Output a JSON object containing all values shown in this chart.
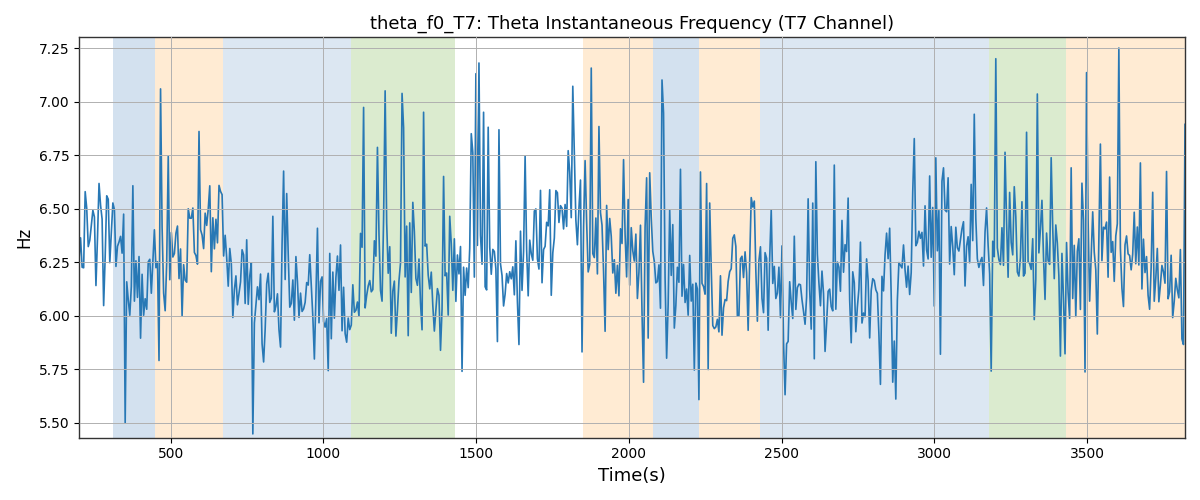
{
  "title": "theta_f0_T7: Theta Instantaneous Frequency (T7 Channel)",
  "xlabel": "Time(s)",
  "ylabel": "Hz",
  "xlim": [
    200,
    3820
  ],
  "ylim": [
    5.43,
    7.3
  ],
  "yticks": [
    5.5,
    5.75,
    6.0,
    6.25,
    6.5,
    6.75,
    7.0,
    7.25
  ],
  "xticks": [
    500,
    1000,
    1500,
    2000,
    2500,
    3000,
    3500
  ],
  "line_color": "#2878b5",
  "line_width": 1.2,
  "background_color": "#ffffff",
  "grid_color": "#b0b0b0",
  "bands": [
    {
      "xmin": 310,
      "xmax": 450,
      "color": "#a8c4e0",
      "alpha": 0.5
    },
    {
      "xmin": 450,
      "xmax": 670,
      "color": "#ffd9a8",
      "alpha": 0.5
    },
    {
      "xmin": 670,
      "xmax": 870,
      "color": "#a8c4e0",
      "alpha": 0.4
    },
    {
      "xmin": 870,
      "xmax": 1090,
      "color": "#a8c4e0",
      "alpha": 0.4
    },
    {
      "xmin": 1090,
      "xmax": 1430,
      "color": "#b8d9a0",
      "alpha": 0.5
    },
    {
      "xmin": 1850,
      "xmax": 2080,
      "color": "#ffd9a8",
      "alpha": 0.5
    },
    {
      "xmin": 2080,
      "xmax": 2230,
      "color": "#a8c4e0",
      "alpha": 0.5
    },
    {
      "xmin": 2230,
      "xmax": 2430,
      "color": "#ffd9a8",
      "alpha": 0.5
    },
    {
      "xmin": 2430,
      "xmax": 2680,
      "color": "#a8c4e0",
      "alpha": 0.4
    },
    {
      "xmin": 2680,
      "xmax": 2950,
      "color": "#a8c4e0",
      "alpha": 0.4
    },
    {
      "xmin": 2950,
      "xmax": 3180,
      "color": "#a8c4e0",
      "alpha": 0.4
    },
    {
      "xmin": 3180,
      "xmax": 3430,
      "color": "#b8d9a0",
      "alpha": 0.5
    },
    {
      "xmin": 3430,
      "xmax": 3820,
      "color": "#ffd9a8",
      "alpha": 0.5
    }
  ],
  "seed": 12345,
  "n_points": 720
}
